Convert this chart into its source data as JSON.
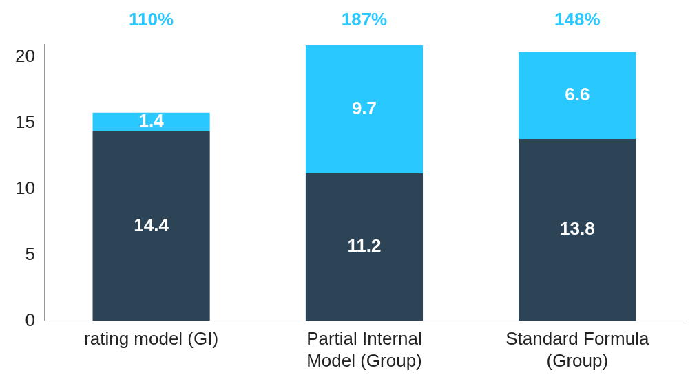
{
  "chart_data": {
    "type": "bar",
    "stacked": true,
    "categories": [
      "rating model (GI)",
      "Partial Internal Model (Group)",
      "Standard Formula (Group)"
    ],
    "series": [
      {
        "color": "#2d4356",
        "values": [
          14.4,
          11.2,
          13.8
        ]
      },
      {
        "color": "#29c8fe",
        "values": [
          1.4,
          9.7,
          6.6
        ]
      }
    ],
    "ylim": [
      0,
      21
    ],
    "yticks": [
      0,
      5,
      10,
      15,
      20
    ],
    "grid": false,
    "legend": false,
    "data_labels": true,
    "annotations": [
      "110%",
      "187%",
      "148%"
    ]
  }
}
